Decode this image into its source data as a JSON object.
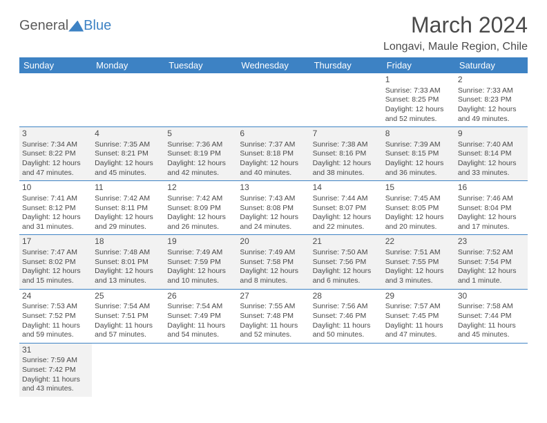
{
  "logo": {
    "part1": "General",
    "part2": "Blue"
  },
  "title": "March 2024",
  "location": "Longavi, Maule Region, Chile",
  "dayHeaders": [
    "Sunday",
    "Monday",
    "Tuesday",
    "Wednesday",
    "Thursday",
    "Friday",
    "Saturday"
  ],
  "colors": {
    "primary": "#3d82c4",
    "text": "#4a4a4a",
    "altRow": "#f2f2f2",
    "background": "#ffffff"
  },
  "weeks": [
    [
      null,
      null,
      null,
      null,
      null,
      {
        "day": "1",
        "sunrise": "Sunrise: 7:33 AM",
        "sunset": "Sunset: 8:25 PM",
        "daylight": "Daylight: 12 hours and 52 minutes."
      },
      {
        "day": "2",
        "sunrise": "Sunrise: 7:33 AM",
        "sunset": "Sunset: 8:23 PM",
        "daylight": "Daylight: 12 hours and 49 minutes."
      }
    ],
    [
      {
        "day": "3",
        "sunrise": "Sunrise: 7:34 AM",
        "sunset": "Sunset: 8:22 PM",
        "daylight": "Daylight: 12 hours and 47 minutes."
      },
      {
        "day": "4",
        "sunrise": "Sunrise: 7:35 AM",
        "sunset": "Sunset: 8:21 PM",
        "daylight": "Daylight: 12 hours and 45 minutes."
      },
      {
        "day": "5",
        "sunrise": "Sunrise: 7:36 AM",
        "sunset": "Sunset: 8:19 PM",
        "daylight": "Daylight: 12 hours and 42 minutes."
      },
      {
        "day": "6",
        "sunrise": "Sunrise: 7:37 AM",
        "sunset": "Sunset: 8:18 PM",
        "daylight": "Daylight: 12 hours and 40 minutes."
      },
      {
        "day": "7",
        "sunrise": "Sunrise: 7:38 AM",
        "sunset": "Sunset: 8:16 PM",
        "daylight": "Daylight: 12 hours and 38 minutes."
      },
      {
        "day": "8",
        "sunrise": "Sunrise: 7:39 AM",
        "sunset": "Sunset: 8:15 PM",
        "daylight": "Daylight: 12 hours and 36 minutes."
      },
      {
        "day": "9",
        "sunrise": "Sunrise: 7:40 AM",
        "sunset": "Sunset: 8:14 PM",
        "daylight": "Daylight: 12 hours and 33 minutes."
      }
    ],
    [
      {
        "day": "10",
        "sunrise": "Sunrise: 7:41 AM",
        "sunset": "Sunset: 8:12 PM",
        "daylight": "Daylight: 12 hours and 31 minutes."
      },
      {
        "day": "11",
        "sunrise": "Sunrise: 7:42 AM",
        "sunset": "Sunset: 8:11 PM",
        "daylight": "Daylight: 12 hours and 29 minutes."
      },
      {
        "day": "12",
        "sunrise": "Sunrise: 7:42 AM",
        "sunset": "Sunset: 8:09 PM",
        "daylight": "Daylight: 12 hours and 26 minutes."
      },
      {
        "day": "13",
        "sunrise": "Sunrise: 7:43 AM",
        "sunset": "Sunset: 8:08 PM",
        "daylight": "Daylight: 12 hours and 24 minutes."
      },
      {
        "day": "14",
        "sunrise": "Sunrise: 7:44 AM",
        "sunset": "Sunset: 8:07 PM",
        "daylight": "Daylight: 12 hours and 22 minutes."
      },
      {
        "day": "15",
        "sunrise": "Sunrise: 7:45 AM",
        "sunset": "Sunset: 8:05 PM",
        "daylight": "Daylight: 12 hours and 20 minutes."
      },
      {
        "day": "16",
        "sunrise": "Sunrise: 7:46 AM",
        "sunset": "Sunset: 8:04 PM",
        "daylight": "Daylight: 12 hours and 17 minutes."
      }
    ],
    [
      {
        "day": "17",
        "sunrise": "Sunrise: 7:47 AM",
        "sunset": "Sunset: 8:02 PM",
        "daylight": "Daylight: 12 hours and 15 minutes."
      },
      {
        "day": "18",
        "sunrise": "Sunrise: 7:48 AM",
        "sunset": "Sunset: 8:01 PM",
        "daylight": "Daylight: 12 hours and 13 minutes."
      },
      {
        "day": "19",
        "sunrise": "Sunrise: 7:49 AM",
        "sunset": "Sunset: 7:59 PM",
        "daylight": "Daylight: 12 hours and 10 minutes."
      },
      {
        "day": "20",
        "sunrise": "Sunrise: 7:49 AM",
        "sunset": "Sunset: 7:58 PM",
        "daylight": "Daylight: 12 hours and 8 minutes."
      },
      {
        "day": "21",
        "sunrise": "Sunrise: 7:50 AM",
        "sunset": "Sunset: 7:56 PM",
        "daylight": "Daylight: 12 hours and 6 minutes."
      },
      {
        "day": "22",
        "sunrise": "Sunrise: 7:51 AM",
        "sunset": "Sunset: 7:55 PM",
        "daylight": "Daylight: 12 hours and 3 minutes."
      },
      {
        "day": "23",
        "sunrise": "Sunrise: 7:52 AM",
        "sunset": "Sunset: 7:54 PM",
        "daylight": "Daylight: 12 hours and 1 minute."
      }
    ],
    [
      {
        "day": "24",
        "sunrise": "Sunrise: 7:53 AM",
        "sunset": "Sunset: 7:52 PM",
        "daylight": "Daylight: 11 hours and 59 minutes."
      },
      {
        "day": "25",
        "sunrise": "Sunrise: 7:54 AM",
        "sunset": "Sunset: 7:51 PM",
        "daylight": "Daylight: 11 hours and 57 minutes."
      },
      {
        "day": "26",
        "sunrise": "Sunrise: 7:54 AM",
        "sunset": "Sunset: 7:49 PM",
        "daylight": "Daylight: 11 hours and 54 minutes."
      },
      {
        "day": "27",
        "sunrise": "Sunrise: 7:55 AM",
        "sunset": "Sunset: 7:48 PM",
        "daylight": "Daylight: 11 hours and 52 minutes."
      },
      {
        "day": "28",
        "sunrise": "Sunrise: 7:56 AM",
        "sunset": "Sunset: 7:46 PM",
        "daylight": "Daylight: 11 hours and 50 minutes."
      },
      {
        "day": "29",
        "sunrise": "Sunrise: 7:57 AM",
        "sunset": "Sunset: 7:45 PM",
        "daylight": "Daylight: 11 hours and 47 minutes."
      },
      {
        "day": "30",
        "sunrise": "Sunrise: 7:58 AM",
        "sunset": "Sunset: 7:44 PM",
        "daylight": "Daylight: 11 hours and 45 minutes."
      }
    ],
    [
      {
        "day": "31",
        "sunrise": "Sunrise: 7:59 AM",
        "sunset": "Sunset: 7:42 PM",
        "daylight": "Daylight: 11 hours and 43 minutes."
      },
      null,
      null,
      null,
      null,
      null,
      null
    ]
  ]
}
